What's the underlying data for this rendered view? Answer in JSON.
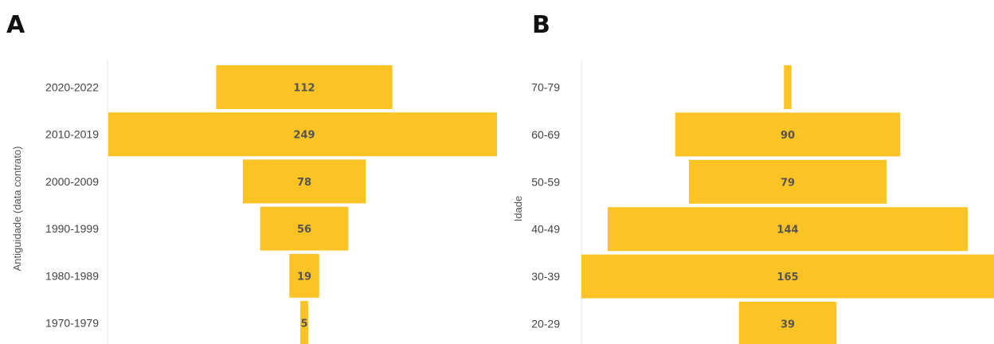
{
  "panels": {
    "a_letter": "A",
    "b_letter": "B"
  },
  "chart_data": [
    {
      "type": "bar",
      "orientation": "horizontal-centered (funnel)",
      "ylabel": "Antiguidade (data contrato)",
      "categories": [
        "2020-2022",
        "2010-2019",
        "2000-2009",
        "1990-1999",
        "1980-1989",
        "1970-1979"
      ],
      "values": [
        112,
        249,
        78,
        56,
        19,
        5
      ],
      "bar_color": "#FBC323",
      "data_labels": true
    },
    {
      "type": "bar",
      "orientation": "horizontal-centered (funnel)",
      "ylabel": "Idade",
      "categories": [
        "70-79",
        "60-69",
        "50-59",
        "40-49",
        "30-39",
        "20-29"
      ],
      "values": [
        3,
        90,
        79,
        144,
        165,
        39
      ],
      "value_labels": [
        "",
        "90",
        "79",
        "144",
        "165",
        "39"
      ],
      "bar_color": "#FBC323",
      "data_labels": true
    }
  ]
}
